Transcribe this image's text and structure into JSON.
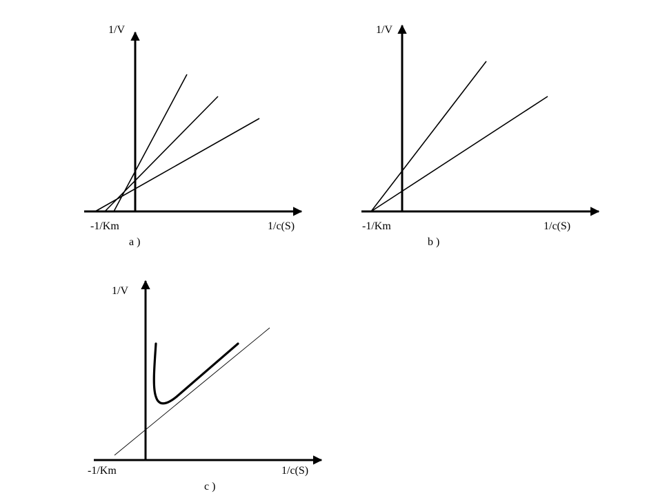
{
  "panels": {
    "a": {
      "y_label": "1/V",
      "x_label": "1/c(S)",
      "intercept_label": "-1/Km",
      "caption": "a )"
    },
    "b": {
      "y_label": "1/V",
      "x_label": "1/c(S)",
      "intercept_label": "-1/Km",
      "caption": "b )"
    },
    "c": {
      "y_label": "1/V",
      "x_label": "1/c(S)",
      "intercept_label": "-1/Km",
      "caption": "c )"
    }
  }
}
